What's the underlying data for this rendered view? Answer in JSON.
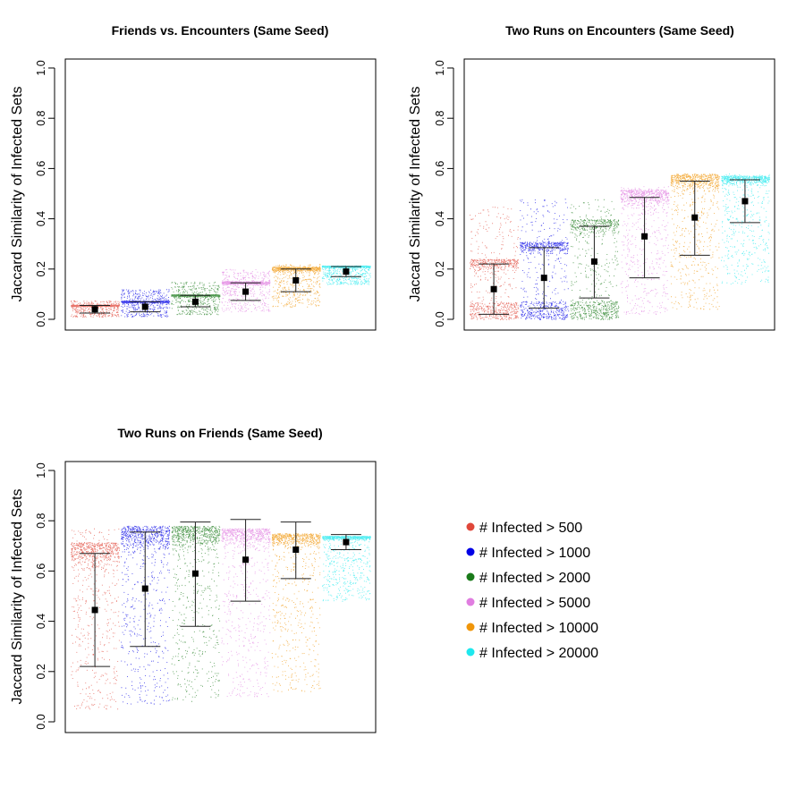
{
  "chart_data": [
    {
      "type": "scatter",
      "title": "Friends vs. Encounters (Same Seed)",
      "ylabel": "Jaccard Similarity of Infected Sets",
      "xlabel": "",
      "ylim": [
        0,
        1
      ],
      "yticks": [
        "0.0",
        "0.2",
        "0.4",
        "0.6",
        "0.8",
        "1.0"
      ],
      "series": [
        {
          "name": "# Infected > 500",
          "mean": 0.04,
          "err_low": 0.025,
          "err_high": 0.055,
          "range": [
            0.01,
            0.075
          ]
        },
        {
          "name": "# Infected > 1000",
          "mean": 0.05,
          "err_low": 0.03,
          "err_high": 0.07,
          "range": [
            0.01,
            0.12
          ]
        },
        {
          "name": "# Infected > 2000",
          "mean": 0.07,
          "err_low": 0.05,
          "err_high": 0.095,
          "range": [
            0.02,
            0.15
          ]
        },
        {
          "name": "# Infected > 5000",
          "mean": 0.11,
          "err_low": 0.075,
          "err_high": 0.145,
          "range": [
            0.03,
            0.2
          ]
        },
        {
          "name": "# Infected > 10000",
          "mean": 0.155,
          "err_low": 0.11,
          "err_high": 0.2,
          "range": [
            0.05,
            0.22
          ]
        },
        {
          "name": "# Infected > 20000",
          "mean": 0.19,
          "err_low": 0.17,
          "err_high": 0.21,
          "range": [
            0.14,
            0.215
          ]
        }
      ]
    },
    {
      "type": "scatter",
      "title": "Two Runs on Encounters (Same Seed)",
      "ylabel": "Jaccard Similarity of Infected Sets",
      "xlabel": "",
      "ylim": [
        0,
        1
      ],
      "yticks": [
        "0.0",
        "0.2",
        "0.4",
        "0.6",
        "0.8",
        "1.0"
      ],
      "series": [
        {
          "name": "# Infected > 500",
          "mean": 0.12,
          "err_low": 0.02,
          "err_high": 0.22,
          "range": [
            0.0,
            0.45
          ]
        },
        {
          "name": "# Infected > 1000",
          "mean": 0.165,
          "err_low": 0.045,
          "err_high": 0.285,
          "range": [
            0.0,
            0.48
          ]
        },
        {
          "name": "# Infected > 2000",
          "mean": 0.23,
          "err_low": 0.085,
          "err_high": 0.37,
          "range": [
            0.0,
            0.48
          ]
        },
        {
          "name": "# Infected > 5000",
          "mean": 0.33,
          "err_low": 0.165,
          "err_high": 0.485,
          "range": [
            0.02,
            0.53
          ]
        },
        {
          "name": "# Infected > 10000",
          "mean": 0.405,
          "err_low": 0.255,
          "err_high": 0.55,
          "range": [
            0.04,
            0.58
          ]
        },
        {
          "name": "# Infected > 20000",
          "mean": 0.47,
          "err_low": 0.385,
          "err_high": 0.555,
          "range": [
            0.14,
            0.58
          ]
        }
      ]
    },
    {
      "type": "scatter",
      "title": "Two Runs on Friends (Same Seed)",
      "ylabel": "Jaccard Similarity of Infected Sets",
      "xlabel": "",
      "ylim": [
        0,
        1
      ],
      "yticks": [
        "0.0",
        "0.2",
        "0.4",
        "0.6",
        "0.8",
        "1.0"
      ],
      "series": [
        {
          "name": "# Infected > 500",
          "mean": 0.445,
          "err_low": 0.22,
          "err_high": 0.67,
          "range": [
            0.05,
            0.77
          ]
        },
        {
          "name": "# Infected > 1000",
          "mean": 0.53,
          "err_low": 0.3,
          "err_high": 0.755,
          "range": [
            0.07,
            0.78
          ]
        },
        {
          "name": "# Infected > 2000",
          "mean": 0.59,
          "err_low": 0.38,
          "err_high": 0.795,
          "range": [
            0.08,
            0.78
          ]
        },
        {
          "name": "# Infected > 5000",
          "mean": 0.645,
          "err_low": 0.48,
          "err_high": 0.805,
          "range": [
            0.1,
            0.77
          ]
        },
        {
          "name": "# Infected > 10000",
          "mean": 0.685,
          "err_low": 0.57,
          "err_high": 0.795,
          "range": [
            0.12,
            0.75
          ]
        },
        {
          "name": "# Infected > 20000",
          "mean": 0.715,
          "err_low": 0.685,
          "err_high": 0.745,
          "range": [
            0.48,
            0.74
          ]
        }
      ]
    }
  ],
  "legend": {
    "position": "bottom-right",
    "items": [
      {
        "label": "# Infected > 500",
        "color": "#e0473a"
      },
      {
        "label": "# Infected > 1000",
        "color": "#0000e6"
      },
      {
        "label": "# Infected > 2000",
        "color": "#1a7a1a"
      },
      {
        "label": "# Infected > 5000",
        "color": "#e07de0"
      },
      {
        "label": "# Infected > 10000",
        "color": "#f0960a"
      },
      {
        "label": "# Infected > 20000",
        "color": "#1ee8ee"
      }
    ]
  }
}
